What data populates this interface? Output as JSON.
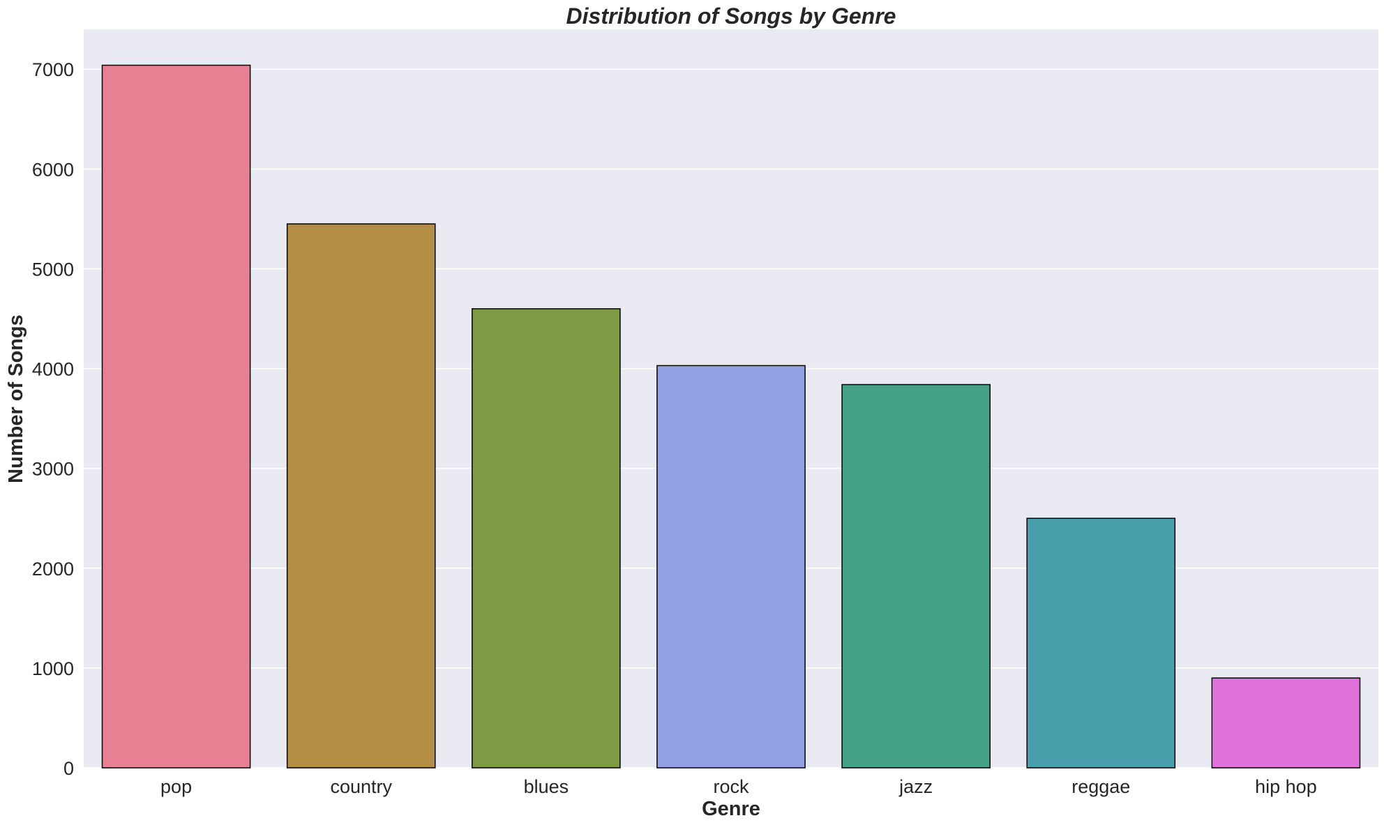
{
  "chart_data": {
    "type": "bar",
    "title": "Distribution of Songs by Genre",
    "xlabel": "Genre",
    "ylabel": "Number of Songs",
    "categories": [
      "pop",
      "country",
      "blues",
      "rock",
      "jazz",
      "reggae",
      "hip hop"
    ],
    "values": [
      7040,
      5450,
      4600,
      4030,
      3840,
      2500,
      900
    ],
    "colors": [
      "#e88093",
      "#b38d44",
      "#7f9a42",
      "#92a1e5",
      "#45a286",
      "#499fac",
      "#e071da"
    ],
    "ylim": [
      0,
      7400
    ],
    "yticks": [
      0,
      1000,
      2000,
      3000,
      4000,
      5000,
      6000,
      7000
    ],
    "grid": true,
    "background": "#eaeaf2",
    "bar_edge_color": "#000000"
  }
}
